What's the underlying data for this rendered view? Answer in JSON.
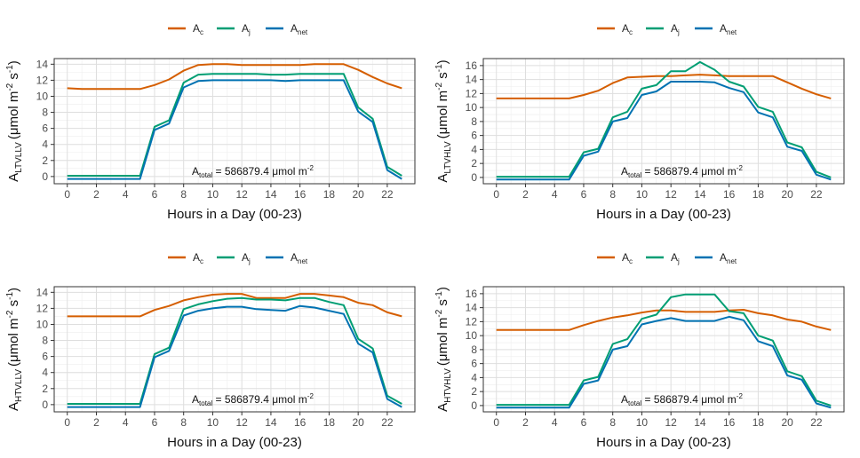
{
  "legend": {
    "entries": [
      {
        "base": "A",
        "sub": "c",
        "color": "#d55e00"
      },
      {
        "base": "A",
        "sub": "j",
        "color": "#009e73"
      },
      {
        "base": "A",
        "sub": "net",
        "color": "#0072b2"
      }
    ]
  },
  "chart_data": [
    {
      "type": "line",
      "title": "",
      "xlabel": "Hours in a Day (00-23)",
      "ylabel": {
        "base": "A",
        "sub": "LTVLLV",
        "unit": "(μmol m",
        "exp1": "-2",
        "mid": " s",
        "exp2": "-1",
        "close": ")"
      },
      "annotation": {
        "base": "A",
        "sub": "total",
        "text": " = 586879.4 μmol m",
        "sup": "-2"
      },
      "x": [
        0,
        1,
        2,
        3,
        4,
        5,
        6,
        7,
        8,
        9,
        10,
        11,
        12,
        13,
        14,
        15,
        16,
        17,
        18,
        19,
        20,
        21,
        22,
        23
      ],
      "xticks": [
        0,
        2,
        4,
        6,
        8,
        10,
        12,
        14,
        16,
        18,
        20,
        22
      ],
      "xlim": [
        -0.9,
        23.9
      ],
      "ylim": [
        -0.9,
        14.7
      ],
      "yticks": [
        0,
        2,
        4,
        6,
        8,
        10,
        12,
        14
      ],
      "grid": true,
      "legend_position": "top",
      "series": [
        {
          "name": "Ac",
          "values": [
            11.0,
            10.9,
            10.9,
            10.9,
            10.9,
            10.9,
            11.4,
            12.1,
            13.2,
            13.9,
            14.0,
            14.0,
            13.9,
            13.9,
            13.9,
            13.9,
            13.9,
            14.0,
            14.0,
            14.0,
            13.3,
            12.4,
            11.6,
            11.0
          ]
        },
        {
          "name": "Aj",
          "values": [
            0.1,
            0.1,
            0.1,
            0.1,
            0.1,
            0.1,
            6.2,
            7.0,
            11.7,
            12.7,
            12.8,
            12.8,
            12.8,
            12.8,
            12.7,
            12.7,
            12.8,
            12.8,
            12.8,
            12.8,
            8.6,
            7.2,
            1.2,
            0.1
          ]
        },
        {
          "name": "Anet",
          "values": [
            -0.3,
            -0.3,
            -0.3,
            -0.3,
            -0.3,
            -0.3,
            5.8,
            6.6,
            11.1,
            11.9,
            12.0,
            12.0,
            12.0,
            12.0,
            12.0,
            11.9,
            12.0,
            12.0,
            12.0,
            12.0,
            8.1,
            6.8,
            0.8,
            -0.3
          ]
        }
      ]
    },
    {
      "type": "line",
      "title": "",
      "xlabel": "Hours in a Day (00-23)",
      "ylabel": {
        "base": "A",
        "sub": "LTVHLV",
        "unit": "(μmol m",
        "exp1": "-2",
        "mid": " s",
        "exp2": "-1",
        "close": ")"
      },
      "annotation": {
        "base": "A",
        "sub": "total",
        "text": " = 586879.4 μmol m",
        "sup": "-2"
      },
      "x": [
        0,
        1,
        2,
        3,
        4,
        5,
        6,
        7,
        8,
        9,
        10,
        11,
        12,
        13,
        14,
        15,
        16,
        17,
        18,
        19,
        20,
        21,
        22,
        23
      ],
      "xticks": [
        0,
        2,
        4,
        6,
        8,
        10,
        12,
        14,
        16,
        18,
        20,
        22
      ],
      "xlim": [
        -0.9,
        23.9
      ],
      "ylim": [
        -0.9,
        17.0
      ],
      "yticks": [
        0,
        2,
        4,
        6,
        8,
        10,
        12,
        14,
        16
      ],
      "grid": true,
      "legend_position": "top",
      "series": [
        {
          "name": "Ac",
          "values": [
            11.3,
            11.3,
            11.3,
            11.3,
            11.3,
            11.3,
            11.8,
            12.4,
            13.5,
            14.3,
            14.4,
            14.5,
            14.5,
            14.6,
            14.7,
            14.6,
            14.5,
            14.5,
            14.5,
            14.5,
            13.6,
            12.7,
            11.9,
            11.3
          ]
        },
        {
          "name": "Aj",
          "values": [
            0.1,
            0.1,
            0.1,
            0.1,
            0.1,
            0.1,
            3.6,
            4.1,
            8.6,
            9.4,
            12.7,
            13.2,
            15.2,
            15.2,
            16.5,
            15.4,
            13.7,
            13.0,
            10.1,
            9.4,
            5.0,
            4.3,
            0.8,
            0.0
          ]
        },
        {
          "name": "Anet",
          "values": [
            -0.3,
            -0.3,
            -0.3,
            -0.3,
            -0.3,
            -0.3,
            3.1,
            3.7,
            8.0,
            8.5,
            11.8,
            12.3,
            13.7,
            13.7,
            13.7,
            13.6,
            12.8,
            12.2,
            9.3,
            8.6,
            4.4,
            3.8,
            0.4,
            -0.3
          ]
        }
      ]
    },
    {
      "type": "line",
      "title": "",
      "xlabel": "Hours in a Day (00-23)",
      "ylabel": {
        "base": "A",
        "sub": "HTVLLV",
        "unit": "(μmol m",
        "exp1": "-2",
        "mid": " s",
        "exp2": "-1",
        "close": ")"
      },
      "annotation": {
        "base": "A",
        "sub": "total",
        "text": " = 586879.4 μmol m",
        "sup": "-2"
      },
      "x": [
        0,
        1,
        2,
        3,
        4,
        5,
        6,
        7,
        8,
        9,
        10,
        11,
        12,
        13,
        14,
        15,
        16,
        17,
        18,
        19,
        20,
        21,
        22,
        23
      ],
      "xticks": [
        0,
        2,
        4,
        6,
        8,
        10,
        12,
        14,
        16,
        18,
        20,
        22
      ],
      "xlim": [
        -0.9,
        23.9
      ],
      "ylim": [
        -0.9,
        14.7
      ],
      "yticks": [
        0,
        2,
        4,
        6,
        8,
        10,
        12,
        14
      ],
      "grid": true,
      "legend_position": "top",
      "series": [
        {
          "name": "Ac",
          "values": [
            11.0,
            11.0,
            11.0,
            11.0,
            11.0,
            11.0,
            11.8,
            12.3,
            13.0,
            13.4,
            13.7,
            13.8,
            13.8,
            13.3,
            13.3,
            13.3,
            13.8,
            13.8,
            13.6,
            13.4,
            12.7,
            12.4,
            11.5,
            11.0
          ]
        },
        {
          "name": "Aj",
          "values": [
            0.1,
            0.1,
            0.1,
            0.1,
            0.1,
            0.1,
            6.3,
            7.1,
            11.9,
            12.5,
            12.9,
            13.2,
            13.3,
            13.1,
            13.1,
            13.0,
            13.3,
            13.3,
            12.8,
            12.4,
            8.2,
            7.0,
            1.1,
            0.1
          ]
        },
        {
          "name": "Anet",
          "values": [
            -0.3,
            -0.3,
            -0.3,
            -0.3,
            -0.3,
            -0.3,
            5.9,
            6.7,
            11.1,
            11.7,
            12.0,
            12.2,
            12.2,
            11.9,
            11.8,
            11.7,
            12.3,
            12.1,
            11.7,
            11.3,
            7.6,
            6.5,
            0.7,
            -0.3
          ]
        }
      ]
    },
    {
      "type": "line",
      "title": "",
      "xlabel": "Hours in a Day (00-23)",
      "ylabel": {
        "base": "A",
        "sub": "HTVHLV",
        "unit": "(μmol m",
        "exp1": "-2",
        "mid": " s",
        "exp2": "-1",
        "close": ")"
      },
      "annotation": {
        "base": "A",
        "sub": "total",
        "text": " = 586879.4 μmol m",
        "sup": "-2"
      },
      "x": [
        0,
        1,
        2,
        3,
        4,
        5,
        6,
        7,
        8,
        9,
        10,
        11,
        12,
        13,
        14,
        15,
        16,
        17,
        18,
        19,
        20,
        21,
        22,
        23
      ],
      "xticks": [
        0,
        2,
        4,
        6,
        8,
        10,
        12,
        14,
        16,
        18,
        20,
        22
      ],
      "xlim": [
        -0.9,
        23.9
      ],
      "ylim": [
        -0.9,
        17.0
      ],
      "yticks": [
        0,
        2,
        4,
        6,
        8,
        10,
        12,
        14,
        16
      ],
      "grid": true,
      "legend_position": "top",
      "series": [
        {
          "name": "Ac",
          "values": [
            10.8,
            10.8,
            10.8,
            10.8,
            10.8,
            10.8,
            11.5,
            12.1,
            12.6,
            12.9,
            13.3,
            13.6,
            13.6,
            13.4,
            13.4,
            13.4,
            13.6,
            13.7,
            13.2,
            12.9,
            12.3,
            12.0,
            11.3,
            10.8
          ]
        },
        {
          "name": "Aj",
          "values": [
            0.1,
            0.1,
            0.1,
            0.1,
            0.1,
            0.1,
            3.6,
            4.1,
            8.8,
            9.5,
            12.4,
            13.0,
            15.5,
            15.9,
            15.9,
            15.9,
            13.5,
            13.2,
            10.0,
            9.3,
            4.9,
            4.2,
            0.7,
            0.0
          ]
        },
        {
          "name": "Anet",
          "values": [
            -0.3,
            -0.3,
            -0.3,
            -0.3,
            -0.3,
            -0.3,
            3.1,
            3.6,
            8.0,
            8.5,
            11.6,
            12.1,
            12.5,
            12.1,
            12.1,
            12.1,
            12.7,
            12.2,
            9.2,
            8.5,
            4.3,
            3.7,
            0.3,
            -0.3
          ]
        }
      ]
    }
  ]
}
